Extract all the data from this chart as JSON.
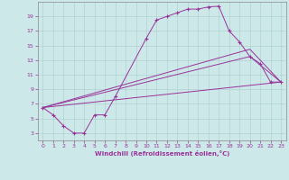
{
  "xlabel": "Windchill (Refroidissement éolien,°C)",
  "bg_color": "#cce8e8",
  "grid_color": "#aacccc",
  "line_color": "#993399",
  "xlim": [
    -0.5,
    23.5
  ],
  "ylim": [
    2.0,
    21.0
  ],
  "xticks": [
    0,
    1,
    2,
    3,
    4,
    5,
    6,
    7,
    8,
    9,
    10,
    11,
    12,
    13,
    14,
    15,
    16,
    17,
    18,
    19,
    20,
    21,
    22,
    23
  ],
  "yticks": [
    3,
    5,
    7,
    9,
    11,
    13,
    15,
    17,
    19
  ],
  "lines": [
    {
      "x": [
        0,
        1,
        2,
        3,
        4,
        5,
        6,
        7,
        10,
        11,
        12,
        13,
        14,
        15,
        16,
        17,
        18,
        19,
        20,
        21,
        22,
        23
      ],
      "y": [
        6.5,
        5.5,
        4.0,
        3.0,
        3.0,
        5.5,
        5.5,
        8.0,
        16.0,
        18.5,
        19.0,
        19.5,
        20.0,
        20.0,
        20.3,
        20.4,
        17.0,
        15.5,
        13.5,
        12.5,
        10.0,
        10.0
      ],
      "marker": true
    },
    {
      "x": [
        0,
        23
      ],
      "y": [
        6.5,
        10.0
      ],
      "marker": false
    },
    {
      "x": [
        0,
        20,
        23
      ],
      "y": [
        6.5,
        13.5,
        10.0
      ],
      "marker": false
    },
    {
      "x": [
        0,
        20,
        23
      ],
      "y": [
        6.5,
        14.5,
        10.0
      ],
      "marker": false
    }
  ]
}
